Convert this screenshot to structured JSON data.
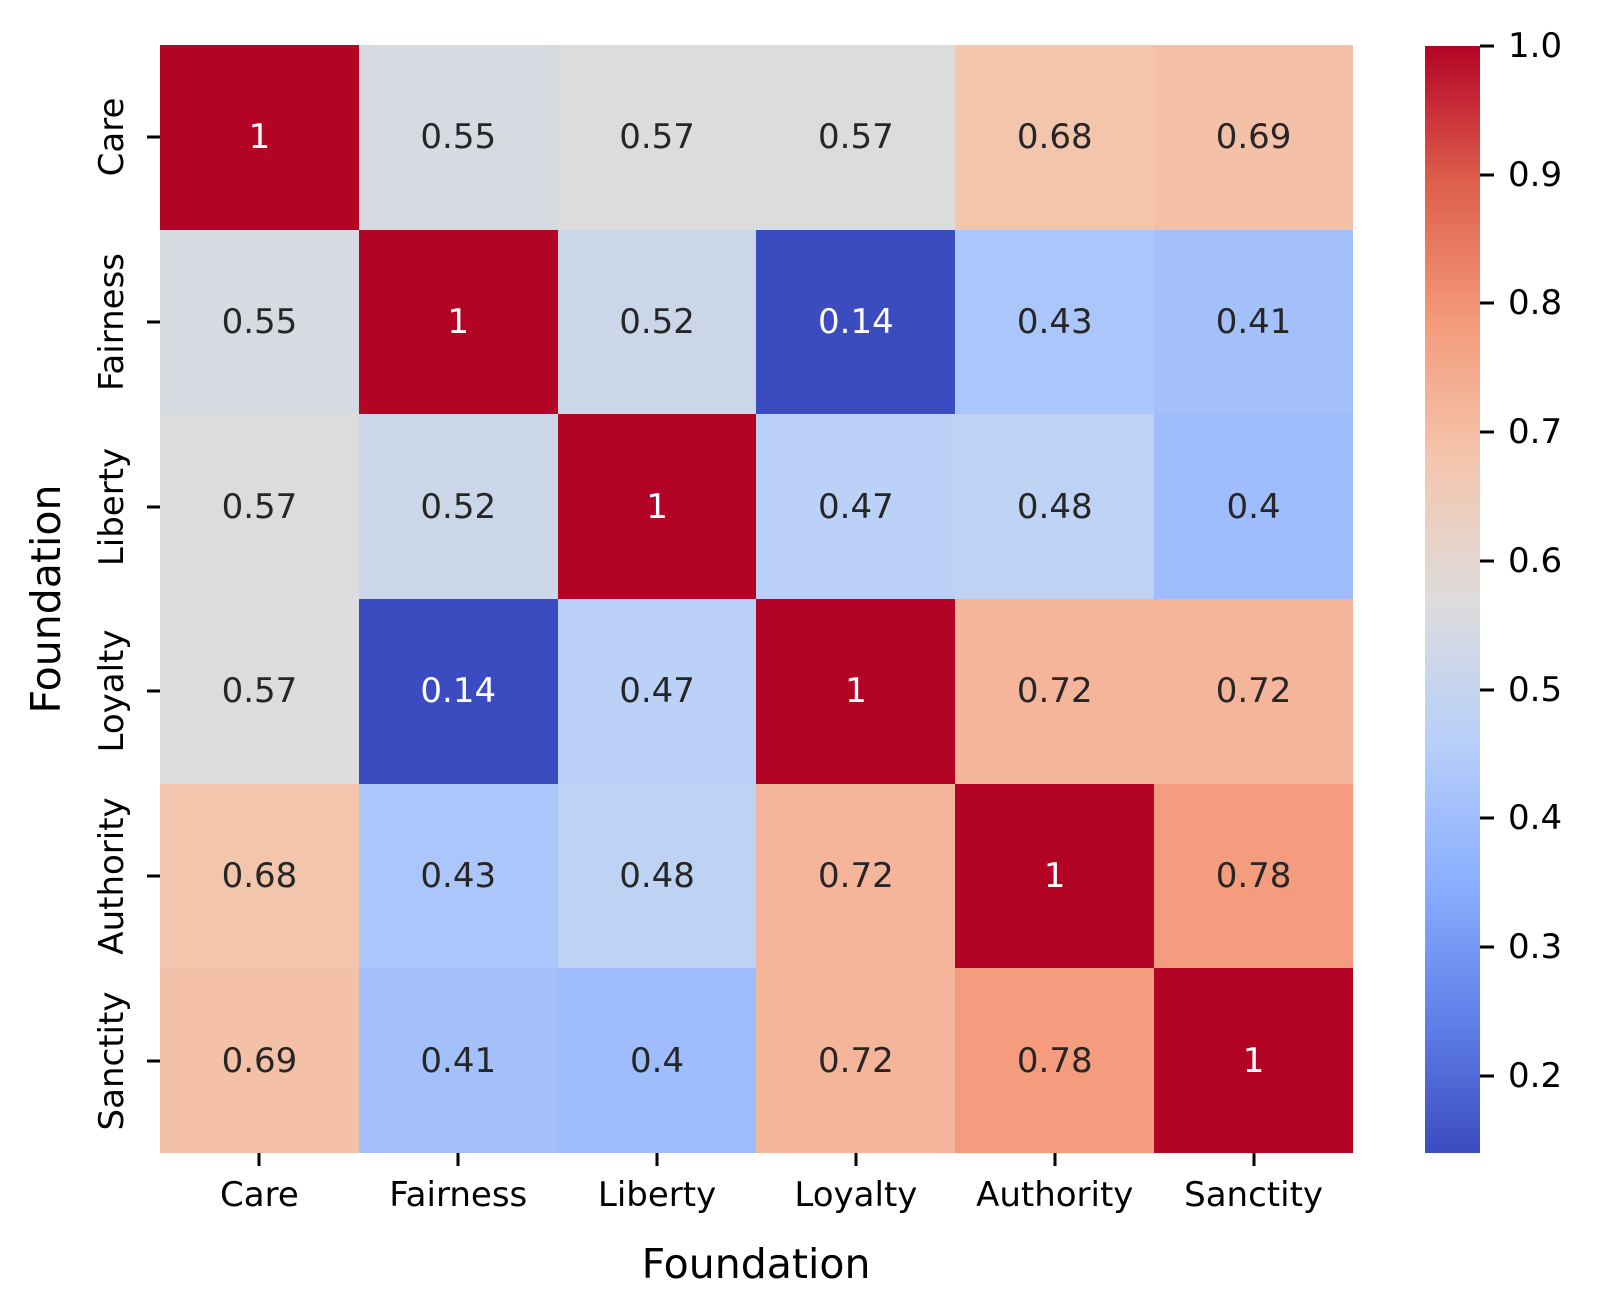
{
  "chart_data": {
    "type": "heatmap",
    "xlabel": "Foundation",
    "ylabel": "Foundation",
    "categories": [
      "Care",
      "Fairness",
      "Liberty",
      "Loyalty",
      "Authority",
      "Sanctity"
    ],
    "matrix": [
      [
        1.0,
        0.55,
        0.57,
        0.57,
        0.68,
        0.69
      ],
      [
        0.55,
        1.0,
        0.52,
        0.14,
        0.43,
        0.41
      ],
      [
        0.57,
        0.52,
        1.0,
        0.47,
        0.48,
        0.4
      ],
      [
        0.57,
        0.14,
        0.47,
        1.0,
        0.72,
        0.72
      ],
      [
        0.68,
        0.43,
        0.48,
        0.72,
        1.0,
        0.78
      ],
      [
        0.69,
        0.41,
        0.4,
        0.72,
        0.78,
        1.0
      ]
    ],
    "cell_labels": [
      [
        "1",
        "0.55",
        "0.57",
        "0.57",
        "0.68",
        "0.69"
      ],
      [
        "0.55",
        "1",
        "0.52",
        "0.14",
        "0.43",
        "0.41"
      ],
      [
        "0.57",
        "0.52",
        "1",
        "0.47",
        "0.48",
        "0.4"
      ],
      [
        "0.57",
        "0.14",
        "0.47",
        "1",
        "0.72",
        "0.72"
      ],
      [
        "0.68",
        "0.43",
        "0.48",
        "0.72",
        "1",
        "0.78"
      ],
      [
        "0.69",
        "0.41",
        "0.4",
        "0.72",
        "0.78",
        "1"
      ]
    ],
    "colormap": "coolwarm",
    "vmin": 0.14,
    "vmax": 1.0,
    "colorbar_tick_labels": [
      "1.0",
      "0.9",
      "0.8",
      "0.7",
      "0.6",
      "0.5",
      "0.4",
      "0.3",
      "0.2"
    ],
    "colorbar_tick_values": [
      1.0,
      0.9,
      0.8,
      0.7,
      0.6,
      0.5,
      0.4,
      0.3,
      0.2
    ],
    "legend_position": "right-colorbar",
    "grid": false
  },
  "colors": {
    "cmap_stops": [
      "#3b4cc0",
      "#6282ea",
      "#8db0fe",
      "#b8d0f9",
      "#dddcdc",
      "#f4c6ae",
      "#f49a7b",
      "#de604d",
      "#b40426"
    ],
    "annot_dark": "#262626",
    "annot_light": "#ffffff",
    "tick_color": "#000000"
  }
}
